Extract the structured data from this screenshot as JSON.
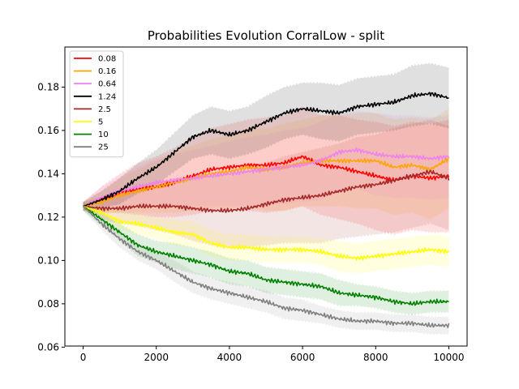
{
  "chart_data": {
    "type": "line",
    "title": "Probabilities Evolution CorralLow  - split",
    "xlabel": "",
    "ylabel": "",
    "xlim": [
      -500,
      10500
    ],
    "ylim": [
      0.0605,
      0.1985
    ],
    "x_ticks": [
      {
        "value": 0,
        "label": "0"
      },
      {
        "value": 2000,
        "label": "2000"
      },
      {
        "value": 4000,
        "label": "4000"
      },
      {
        "value": 6000,
        "label": "6000"
      },
      {
        "value": 8000,
        "label": "8000"
      },
      {
        "value": 10000,
        "label": "10000"
      }
    ],
    "y_ticks": [
      {
        "value": 0.06,
        "label": "0.06"
      },
      {
        "value": 0.08,
        "label": "0.08"
      },
      {
        "value": 0.1,
        "label": "0.10"
      },
      {
        "value": 0.12,
        "label": "0.12"
      },
      {
        "value": 0.14,
        "label": "0.14"
      },
      {
        "value": 0.16,
        "label": "0.16"
      },
      {
        "value": 0.18,
        "label": "0.18"
      }
    ],
    "grid": false,
    "legend_position": "top-left",
    "x": [
      0,
      500,
      1000,
      1500,
      2000,
      2500,
      3000,
      3500,
      4000,
      4500,
      5000,
      5500,
      6000,
      6500,
      7000,
      7500,
      8000,
      8500,
      9000,
      9500,
      10000
    ],
    "series": [
      {
        "name": "0.08",
        "color": "#ff0000",
        "values": [
          0.125,
          0.128,
          0.131,
          0.133,
          0.134,
          0.136,
          0.139,
          0.142,
          0.143,
          0.144,
          0.144,
          0.145,
          0.148,
          0.144,
          0.143,
          0.141,
          0.139,
          0.137,
          0.139,
          0.138,
          0.139
        ],
        "band": [
          0.002,
          0.006,
          0.009,
          0.012,
          0.014,
          0.016,
          0.018,
          0.019,
          0.02,
          0.021,
          0.022,
          0.022,
          0.023,
          0.023,
          0.024,
          0.024,
          0.025,
          0.025,
          0.025,
          0.025,
          0.026
        ]
      },
      {
        "name": "0.16",
        "color": "#ffa500",
        "values": [
          0.125,
          0.127,
          0.13,
          0.132,
          0.134,
          0.136,
          0.138,
          0.14,
          0.141,
          0.143,
          0.142,
          0.143,
          0.145,
          0.146,
          0.146,
          0.146,
          0.146,
          0.143,
          0.144,
          0.142,
          0.147
        ],
        "band": [
          0.002,
          0.005,
          0.008,
          0.01,
          0.012,
          0.014,
          0.015,
          0.016,
          0.017,
          0.018,
          0.019,
          0.02,
          0.02,
          0.021,
          0.021,
          0.022,
          0.022,
          0.022,
          0.022,
          0.023,
          0.023
        ]
      },
      {
        "name": "0.64",
        "color": "#ee82ee",
        "values": [
          0.125,
          0.129,
          0.132,
          0.134,
          0.136,
          0.137,
          0.138,
          0.139,
          0.14,
          0.141,
          0.142,
          0.143,
          0.144,
          0.146,
          0.15,
          0.151,
          0.149,
          0.148,
          0.148,
          0.147,
          0.148
        ],
        "band": [
          0.002,
          0.005,
          0.007,
          0.009,
          0.011,
          0.012,
          0.013,
          0.014,
          0.015,
          0.016,
          0.016,
          0.017,
          0.017,
          0.018,
          0.018,
          0.018,
          0.019,
          0.019,
          0.019,
          0.019,
          0.019
        ]
      },
      {
        "name": "1.24",
        "color": "#000000",
        "values": [
          0.125,
          0.128,
          0.132,
          0.138,
          0.143,
          0.15,
          0.157,
          0.16,
          0.158,
          0.16,
          0.164,
          0.168,
          0.17,
          0.169,
          0.168,
          0.171,
          0.172,
          0.173,
          0.176,
          0.177,
          0.175
        ],
        "band": [
          0.002,
          0.004,
          0.006,
          0.007,
          0.008,
          0.009,
          0.01,
          0.011,
          0.011,
          0.011,
          0.012,
          0.012,
          0.012,
          0.013,
          0.013,
          0.013,
          0.013,
          0.013,
          0.014,
          0.014,
          0.014
        ]
      },
      {
        "name": "2.5",
        "color": "#a52a2a",
        "values": [
          0.125,
          0.124,
          0.124,
          0.125,
          0.125,
          0.125,
          0.124,
          0.123,
          0.123,
          0.124,
          0.126,
          0.128,
          0.129,
          0.13,
          0.132,
          0.134,
          0.135,
          0.137,
          0.139,
          0.141,
          0.138
        ],
        "band": [
          0.002,
          0.005,
          0.007,
          0.009,
          0.011,
          0.013,
          0.015,
          0.016,
          0.017,
          0.018,
          0.019,
          0.02,
          0.021,
          0.022,
          0.022,
          0.023,
          0.023,
          0.024,
          0.024,
          0.024,
          0.024
        ]
      },
      {
        "name": "5",
        "color": "#ffff00",
        "values": [
          0.125,
          0.122,
          0.118,
          0.117,
          0.115,
          0.113,
          0.112,
          0.108,
          0.106,
          0.106,
          0.105,
          0.105,
          0.105,
          0.104,
          0.102,
          0.101,
          0.102,
          0.103,
          0.104,
          0.105,
          0.104
        ],
        "band": [
          0.002,
          0.003,
          0.004,
          0.005,
          0.005,
          0.006,
          0.006,
          0.006,
          0.006,
          0.006,
          0.006,
          0.006,
          0.006,
          0.006,
          0.007,
          0.007,
          0.007,
          0.007,
          0.007,
          0.007,
          0.007
        ]
      },
      {
        "name": "10",
        "color": "#008000",
        "values": [
          0.125,
          0.119,
          0.113,
          0.107,
          0.104,
          0.102,
          0.1,
          0.098,
          0.095,
          0.094,
          0.091,
          0.09,
          0.089,
          0.088,
          0.085,
          0.084,
          0.083,
          0.081,
          0.08,
          0.081,
          0.081
        ],
        "band": [
          0.002,
          0.003,
          0.004,
          0.005,
          0.005,
          0.006,
          0.006,
          0.006,
          0.006,
          0.006,
          0.006,
          0.006,
          0.006,
          0.006,
          0.006,
          0.005,
          0.005,
          0.005,
          0.005,
          0.005,
          0.005
        ]
      },
      {
        "name": "25",
        "color": "#808080",
        "values": [
          0.125,
          0.117,
          0.11,
          0.104,
          0.1,
          0.095,
          0.09,
          0.087,
          0.085,
          0.083,
          0.081,
          0.078,
          0.077,
          0.075,
          0.073,
          0.072,
          0.072,
          0.071,
          0.071,
          0.07,
          0.07
        ],
        "band": [
          0.002,
          0.003,
          0.004,
          0.004,
          0.004,
          0.005,
          0.005,
          0.005,
          0.005,
          0.005,
          0.005,
          0.005,
          0.005,
          0.004,
          0.004,
          0.004,
          0.004,
          0.004,
          0.004,
          0.004,
          0.004
        ]
      }
    ]
  }
}
